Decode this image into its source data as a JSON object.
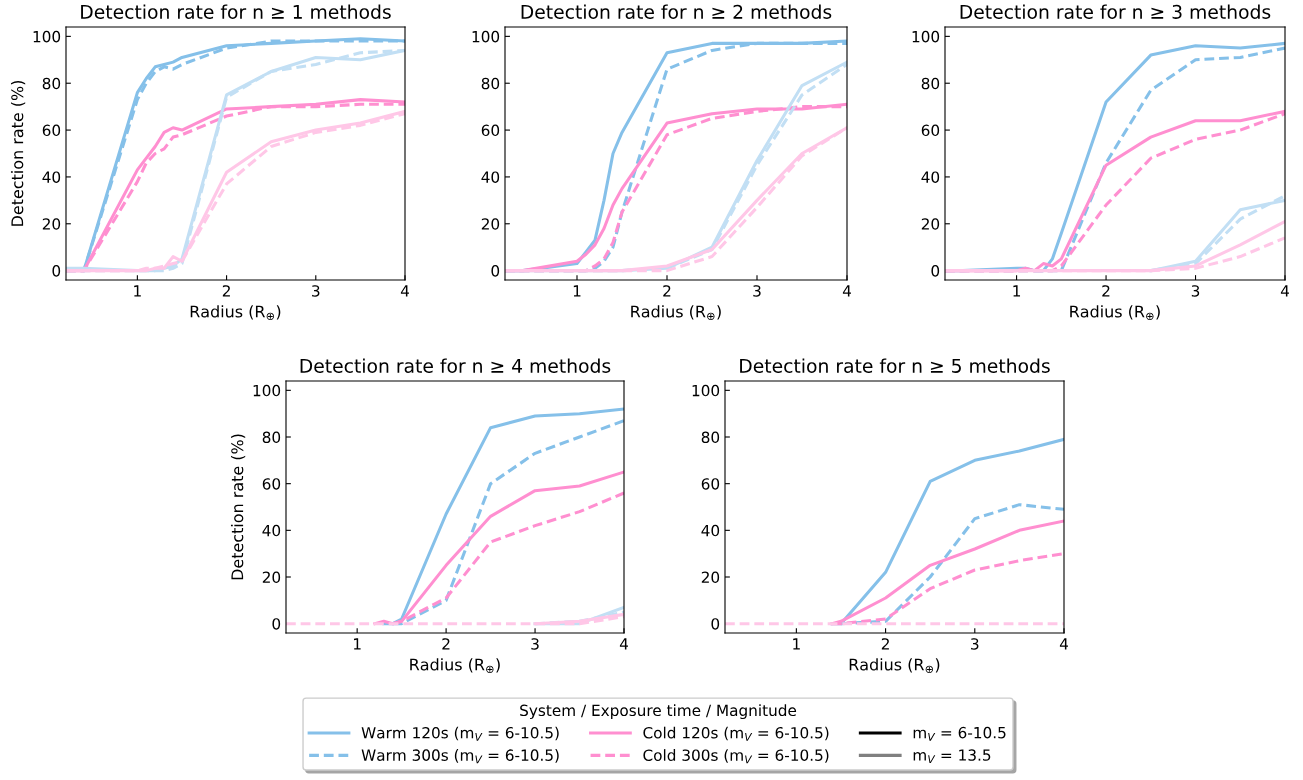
{
  "chart_data": [
    {
      "type": "line",
      "title": "Detection rate for n ≥ 1 methods",
      "xlabel": "Radius (R$_{⊕}$)",
      "ylabel": "Detection rate (%)",
      "x": [
        0.2,
        0.4,
        1.0,
        1.1,
        1.2,
        1.3,
        1.4,
        1.5,
        2.0,
        2.5,
        3.0,
        3.5,
        4.0
      ],
      "xlim": [
        0.2,
        4.0
      ],
      "xticks": [
        1,
        2,
        3,
        4
      ],
      "ylim": [
        -4,
        104
      ],
      "yticks": [
        0,
        20,
        40,
        60,
        80,
        100
      ],
      "grid": false,
      "series": [
        {
          "color": "#85c0e9",
          "line_style": "solid",
          "values": [
            null,
            0,
            76,
            82,
            87,
            88,
            89,
            91,
            96,
            97,
            98,
            99,
            98
          ]
        },
        {
          "color": "#85c0e9",
          "line_style": "dashed",
          "values": [
            0,
            0,
            73,
            80,
            85,
            87,
            86,
            88,
            95,
            98,
            98,
            98,
            98
          ]
        },
        {
          "color": "#ff8fd0",
          "line_style": "solid",
          "values": [
            0,
            0,
            43,
            48,
            53,
            59,
            61,
            60,
            69,
            70,
            71,
            73,
            72
          ]
        },
        {
          "color": "#ff8fd0",
          "line_style": "dashed",
          "values": [
            0,
            0,
            38,
            46,
            50,
            52,
            57,
            58,
            66,
            70,
            70,
            71,
            71
          ]
        },
        {
          "color": "#c2dff4",
          "line_style": "solid",
          "values": [
            1,
            1,
            0,
            0,
            0,
            1,
            2,
            5,
            75,
            85,
            91,
            90,
            94
          ]
        },
        {
          "color": "#c2dff4",
          "line_style": "dashed",
          "values": [
            0,
            0,
            0,
            0,
            0,
            0,
            1,
            3,
            74,
            85,
            88,
            93,
            94
          ]
        },
        {
          "color": "#ffc7e7",
          "line_style": "solid",
          "values": [
            0,
            0,
            0,
            0,
            1,
            1,
            6,
            4,
            42,
            55,
            60,
            63,
            68
          ]
        },
        {
          "color": "#ffc7e7",
          "line_style": "dashed",
          "values": [
            0,
            0,
            0,
            1,
            1,
            2,
            3,
            4,
            37,
            53,
            59,
            62,
            67
          ]
        }
      ]
    },
    {
      "type": "line",
      "title": "Detection rate for n ≥ 2 methods",
      "xlabel": "Radius (R$_{⊕}$)",
      "x": [
        0.2,
        0.4,
        1.0,
        1.1,
        1.2,
        1.3,
        1.4,
        1.5,
        2.0,
        2.5,
        3.0,
        3.5,
        4.0
      ],
      "xlim": [
        0.2,
        4.0
      ],
      "xticks": [
        1,
        2,
        3,
        4
      ],
      "ylim": [
        -4,
        104
      ],
      "yticks": [
        0,
        20,
        40,
        60,
        80,
        100
      ],
      "grid": false,
      "series": [
        {
          "color": "#85c0e9",
          "line_style": "solid",
          "values": [
            0,
            0,
            3,
            8,
            13,
            30,
            50,
            59,
            93,
            97,
            97,
            97,
            98
          ]
        },
        {
          "color": "#85c0e9",
          "line_style": "dashed",
          "values": [
            0,
            0,
            0,
            0,
            1,
            4,
            10,
            25,
            86,
            94,
            97,
            97,
            97
          ]
        },
        {
          "color": "#ff8fd0",
          "line_style": "solid",
          "values": [
            0,
            0,
            4,
            7,
            11,
            18,
            28,
            35,
            63,
            67,
            69,
            69,
            71
          ]
        },
        {
          "color": "#ff8fd0",
          "line_style": "dashed",
          "values": [
            0,
            0,
            0,
            0,
            2,
            5,
            12,
            25,
            58,
            65,
            68,
            70,
            70
          ]
        },
        {
          "color": "#c2dff4",
          "line_style": "solid",
          "values": [
            0,
            0,
            0,
            0,
            0,
            0,
            0,
            0,
            1,
            10,
            47,
            79,
            89
          ]
        },
        {
          "color": "#c2dff4",
          "line_style": "dashed",
          "values": [
            0,
            0,
            0,
            0,
            0,
            0,
            0,
            0,
            1,
            9,
            45,
            75,
            88
          ]
        },
        {
          "color": "#ffc7e7",
          "line_style": "solid",
          "values": [
            0,
            0,
            0,
            0,
            0,
            0,
            0,
            0,
            2,
            9,
            30,
            50,
            61
          ]
        },
        {
          "color": "#ffc7e7",
          "line_style": "dashed",
          "values": [
            0,
            0,
            0,
            0,
            0,
            0,
            0,
            0,
            0,
            6,
            27,
            49,
            61
          ]
        }
      ]
    },
    {
      "type": "line",
      "title": "Detection rate for n ≥ 3 methods",
      "xlabel": "Radius (R$_{⊕}$)",
      "x": [
        0.2,
        0.4,
        1.0,
        1.1,
        1.2,
        1.3,
        1.4,
        1.5,
        2.0,
        2.5,
        3.0,
        3.5,
        4.0
      ],
      "xlim": [
        0.2,
        4.0
      ],
      "xticks": [
        1,
        2,
        3,
        4
      ],
      "ylim": [
        -4,
        104
      ],
      "yticks": [
        0,
        20,
        40,
        60,
        80,
        100
      ],
      "grid": false,
      "series": [
        {
          "color": "#85c0e9",
          "line_style": "solid",
          "values": [
            0,
            0,
            1,
            1,
            0,
            0,
            5,
            16,
            72,
            92,
            96,
            95,
            97
          ]
        },
        {
          "color": "#85c0e9",
          "line_style": "dashed",
          "values": [
            0,
            0,
            0,
            0,
            0,
            0,
            0,
            0,
            46,
            77,
            90,
            91,
            95
          ]
        },
        {
          "color": "#ff8fd0",
          "line_style": "solid",
          "values": [
            0,
            0,
            0,
            1,
            0,
            3,
            2,
            5,
            45,
            57,
            64,
            64,
            68
          ]
        },
        {
          "color": "#ff8fd0",
          "line_style": "dashed",
          "values": [
            0,
            0,
            0,
            0,
            0,
            0,
            0,
            2,
            28,
            48,
            56,
            60,
            67
          ]
        },
        {
          "color": "#c2dff4",
          "line_style": "solid",
          "values": [
            null,
            null,
            null,
            null,
            null,
            null,
            null,
            null,
            null,
            0,
            4,
            26,
            30
          ]
        },
        {
          "color": "#c2dff4",
          "line_style": "dashed",
          "values": [
            null,
            null,
            null,
            null,
            null,
            null,
            null,
            null,
            null,
            0,
            3,
            22,
            32
          ]
        },
        {
          "color": "#ffc7e7",
          "line_style": "solid",
          "values": [
            0,
            0,
            0,
            0,
            0,
            0,
            0,
            0,
            0,
            0,
            2,
            11,
            21
          ]
        },
        {
          "color": "#ffc7e7",
          "line_style": "dashed",
          "values": [
            0,
            0,
            0,
            0,
            0,
            0,
            0,
            0,
            0,
            0,
            1,
            6,
            14
          ]
        }
      ]
    },
    {
      "type": "line",
      "title": "Detection rate for n ≥ 4 methods",
      "xlabel": "Radius (R$_{⊕}$)",
      "ylabel": "Detection rate (%)",
      "x": [
        0.2,
        0.4,
        1.0,
        1.1,
        1.2,
        1.3,
        1.4,
        1.5,
        2.0,
        2.5,
        3.0,
        3.5,
        4.0
      ],
      "xlim": [
        0.2,
        4.0
      ],
      "xticks": [
        1,
        2,
        3,
        4
      ],
      "ylim": [
        -4,
        104
      ],
      "yticks": [
        0,
        20,
        40,
        60,
        80,
        100
      ],
      "grid": false,
      "series": [
        {
          "color": "#85c0e9",
          "line_style": "solid",
          "values": [
            null,
            null,
            null,
            null,
            null,
            0,
            0,
            2,
            47,
            84,
            89,
            90,
            92
          ]
        },
        {
          "color": "#85c0e9",
          "line_style": "dashed",
          "values": [
            null,
            null,
            null,
            null,
            null,
            null,
            0,
            0,
            10,
            60,
            73,
            80,
            87
          ]
        },
        {
          "color": "#ff8fd0",
          "line_style": "solid",
          "values": [
            null,
            null,
            null,
            null,
            0,
            1,
            0,
            1,
            25,
            46,
            57,
            59,
            65
          ]
        },
        {
          "color": "#ff8fd0",
          "line_style": "dashed",
          "values": [
            null,
            null,
            null,
            null,
            null,
            null,
            0,
            1,
            11,
            35,
            42,
            48,
            56
          ]
        },
        {
          "color": "#c2dff4",
          "line_style": "solid",
          "values": [
            null,
            null,
            null,
            null,
            null,
            null,
            null,
            null,
            null,
            null,
            0,
            0,
            7
          ]
        },
        {
          "color": "#c2dff4",
          "line_style": "dashed",
          "values": [
            null,
            null,
            null,
            null,
            null,
            null,
            null,
            null,
            null,
            null,
            0,
            1,
            5
          ]
        },
        {
          "color": "#ffc7e7",
          "line_style": "solid",
          "values": [
            null,
            null,
            null,
            null,
            null,
            null,
            null,
            null,
            null,
            null,
            0,
            1,
            4
          ]
        },
        {
          "color": "#ffc7e7",
          "line_style": "dashed",
          "values": [
            0,
            0,
            0,
            0,
            0,
            0,
            0,
            0,
            0,
            0,
            0,
            0,
            3
          ]
        }
      ]
    },
    {
      "type": "line",
      "title": "Detection rate for n ≥ 5 methods",
      "xlabel": "Radius (R$_{⊕}$)",
      "x": [
        0.2,
        0.4,
        1.0,
        1.1,
        1.2,
        1.3,
        1.4,
        1.5,
        2.0,
        2.5,
        3.0,
        3.5,
        4.0
      ],
      "xlim": [
        0.2,
        4.0
      ],
      "xticks": [
        1,
        2,
        3,
        4
      ],
      "ylim": [
        -4,
        104
      ],
      "yticks": [
        0,
        20,
        40,
        60,
        80,
        100
      ],
      "grid": false,
      "legend": "bottom",
      "legend_title": "System / Exposure time / Magnitude",
      "series": [
        {
          "name": "Warm 120s (m$_{V}$ = 6-10.5)",
          "color": "#85c0e9",
          "line_style": "solid",
          "values": [
            null,
            null,
            null,
            null,
            null,
            null,
            0,
            0,
            22,
            61,
            70,
            74,
            79
          ]
        },
        {
          "name": "Warm 300s (m$_{V}$ = 6-10.5)",
          "color": "#85c0e9",
          "line_style": "dashed",
          "values": [
            null,
            null,
            null,
            null,
            null,
            null,
            null,
            0,
            1,
            20,
            45,
            51,
            49
          ]
        },
        {
          "name": "Cold 120s (m$_{V}$ = 6-10.5)",
          "color": "#ff8fd0",
          "line_style": "solid",
          "values": [
            null,
            null,
            null,
            null,
            null,
            null,
            0,
            1,
            11,
            25,
            32,
            40,
            44
          ]
        },
        {
          "name": "Cold 300s (m$_{V}$ = 6-10.5)",
          "color": "#ff8fd0",
          "line_style": "dashed",
          "values": [
            null,
            null,
            null,
            null,
            null,
            null,
            0,
            0,
            2,
            15,
            23,
            27,
            30
          ]
        },
        {
          "color": "#c2dff4",
          "line_style": "solid",
          "values": [
            null,
            null,
            null,
            null,
            null,
            null,
            null,
            null,
            null,
            null,
            null,
            null,
            null
          ]
        },
        {
          "color": "#c2dff4",
          "line_style": "dashed",
          "values": [
            null,
            null,
            null,
            null,
            null,
            null,
            null,
            null,
            null,
            null,
            null,
            null,
            null
          ]
        },
        {
          "color": "#ffc7e7",
          "line_style": "solid",
          "values": [
            null,
            null,
            null,
            null,
            null,
            null,
            null,
            null,
            null,
            null,
            null,
            null,
            null
          ]
        },
        {
          "color": "#ffc7e7",
          "line_style": "dashed",
          "values": [
            0,
            0,
            0,
            0,
            0,
            0,
            0,
            0,
            0,
            0,
            0,
            0,
            0
          ]
        },
        {
          "name": "m$_{V}$ = 6-10.5",
          "color": "#000000",
          "line_style": "solid",
          "values": [
            null,
            null,
            null,
            null,
            null,
            null,
            null,
            null,
            null,
            null,
            null,
            null,
            null
          ]
        },
        {
          "name": "m$_{V}$ = 13.5",
          "color": "#808080",
          "line_style": "solid",
          "values": [
            null,
            null,
            null,
            null,
            null,
            null,
            null,
            null,
            null,
            null,
            null,
            null,
            null
          ]
        }
      ]
    }
  ]
}
